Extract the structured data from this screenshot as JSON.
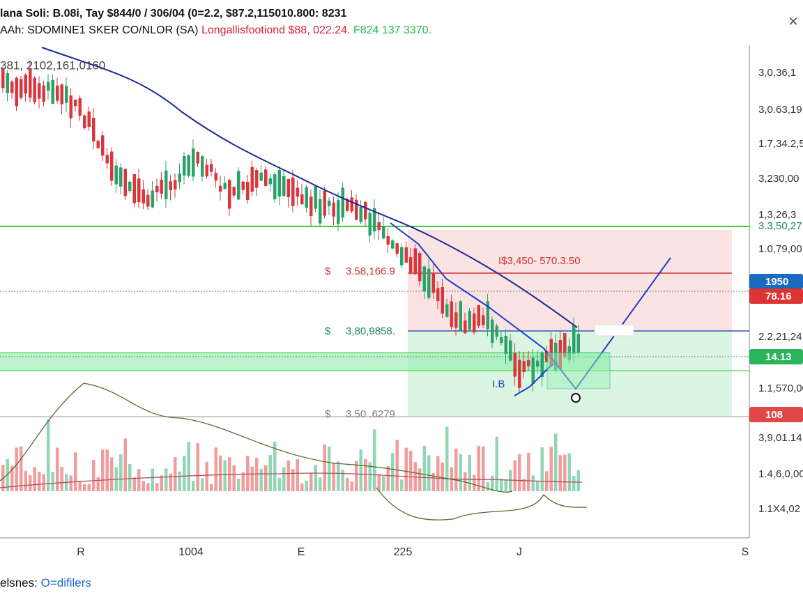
{
  "header": {
    "title": "lana Soli: B.08i, Tay $844/0 / 306/04 (0=2.2, $87.2,115010.800: 8231",
    "subtitle_main": "AAh: SDOMINE1 SKER CO/NLOR (SA)",
    "subtitle_red": "Longallisfootiond $88, 022.24.",
    "subtitle_green": "F824 137 3370.",
    "close": "×"
  },
  "chart": {
    "top_left": "381, 2102,161,0160",
    "price_labels": [
      "3,0,36,1",
      "3,0.63,19",
      "1.7,34.2,5",
      "3,230,00",
      "1,3,26,3",
      "3.3,50,27",
      "1.0,79,00",
      "2.2,21,24",
      "1.1,570,00",
      "3,9,01.14",
      "1.4,6,0,00",
      "1.1X4,02"
    ],
    "badges": [
      "1950",
      "78.16",
      "14.13",
      "108"
    ],
    "annotations": {
      "target": "$",
      "target_value": "3.58,166.9",
      "entry": "$",
      "entry_value": "3,80,9858.",
      "stop": "$",
      "stop_value": "3.50 .6279",
      "range": "I$3,450- 570.3.50",
      "marker": "I.B"
    },
    "time_labels": [
      "R",
      "1004",
      "E",
      "225",
      "J",
      "S"
    ]
  },
  "footer": {
    "label": "elsnes:",
    "legend": "O=difilers"
  }
}
